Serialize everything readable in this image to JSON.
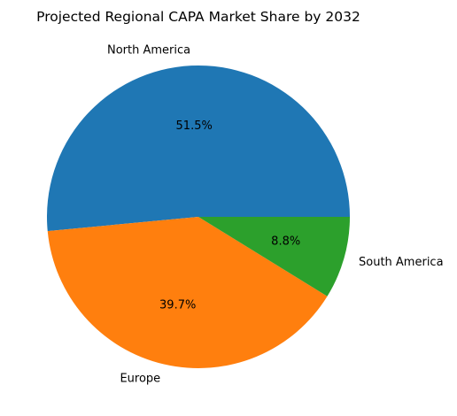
{
  "chart_data": {
    "type": "pie",
    "title": "Projected Regional CAPA Market Share by 2032",
    "categories": [
      "North America",
      "Europe",
      "South America"
    ],
    "values": [
      51.5,
      39.7,
      8.8
    ],
    "value_labels": [
      "51.5%",
      "39.7%",
      "8.8%"
    ],
    "colors": [
      "#1f77b4",
      "#ff7f0e",
      "#2ca02c"
    ],
    "start_angle": 0,
    "direction": "counterclockwise",
    "legend": "none"
  }
}
